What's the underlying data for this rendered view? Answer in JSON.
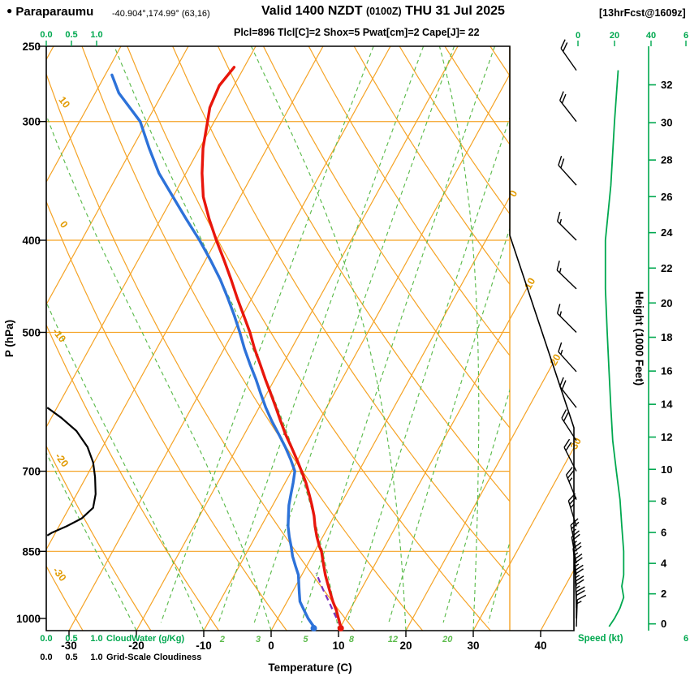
{
  "header": {
    "bullet": "●",
    "station": "Paraparaumu",
    "coords": "-40.904°,174.99° (63,16)",
    "valid_prefix": "Valid 1400 NZDT ",
    "valid_z": "(0100Z)",
    "valid_date": " THU 31 Jul 2025",
    "fcst_tag": "[13hrFcst@1609z]",
    "indices": "Plcl=896 Tlcl[C]=2 Shox=5 Pwat[cm]=2 Cape[J]= 22"
  },
  "axis_labels": {
    "pressure": "P (hPa)",
    "temperature": "Temperature (C)",
    "height": "Height (1000 Feet)",
    "speed": "Speed (kt)",
    "cloudwater": "CloudWater (g/Kg)",
    "cloudiness": "Grid-Scale Cloudiness",
    "speed_axis_cut": "6"
  },
  "ticks": {
    "pressure": [
      250,
      300,
      400,
      500,
      700,
      850,
      1000
    ],
    "temperature": [
      -30,
      -20,
      -10,
      0,
      10,
      20,
      30,
      40
    ],
    "height_kft": [
      0,
      2,
      4,
      6,
      8,
      10,
      12,
      14,
      16,
      18,
      20,
      22,
      24,
      26,
      28,
      30,
      32
    ],
    "speed_top": [
      "0",
      "20",
      "40",
      "6"
    ],
    "cloud": [
      "0.0",
      "0.5",
      "1.0"
    ]
  },
  "grid": {
    "isobars_hPa": [
      300,
      400,
      500,
      700,
      850
    ],
    "isotherms_C": [
      -80,
      -70,
      -60,
      -50,
      -40,
      -30,
      -20,
      -10,
      0,
      10,
      20,
      30,
      40
    ],
    "isotherm_edge_labels": [
      0,
      10,
      20,
      30
    ],
    "dry_adiabats_C": [
      -40,
      -30,
      -20,
      -10,
      0,
      10,
      20,
      30,
      40,
      50,
      60,
      70,
      80,
      90,
      100,
      110,
      120
    ],
    "dry_adiabat_edge_labels": [
      10,
      0,
      -10,
      -20,
      -30
    ],
    "mixing_ratio_lines_gkg": [
      1,
      2,
      3,
      5,
      8,
      12,
      20,
      30
    ],
    "mixing_ratio_labels_gkg": [
      2,
      3,
      5,
      8,
      12,
      20
    ],
    "moist_adiabats_start_C": [
      -20,
      -10,
      0,
      10,
      20,
      30
    ]
  },
  "chart_data": {
    "type": "skewt-log-p",
    "title": "Paraparaumu model sounding, valid 1400 NZDT (0100Z) THU 31 Jul 2025, 13hr forecast",
    "pressure_axis_range_hPa": [
      250,
      1030
    ],
    "temperature_axis_range_C": [
      -33,
      45
    ],
    "height_axis_range_kft": [
      0,
      32
    ],
    "speed_axis_range_kt": [
      0,
      60
    ],
    "indices": {
      "Plcl_hPa": 896,
      "Tlcl_C": 2,
      "Showalter": 5,
      "Pwat_cm": 2,
      "Cape_J": 22
    },
    "surface_dots": {
      "p_hPa": 1020,
      "temp_C": 10,
      "dewpoint_C": 6
    },
    "temperature_C": [
      [
        263,
        -51.5
      ],
      [
        275,
        -52.2
      ],
      [
        290,
        -51.8
      ],
      [
        300,
        -51
      ],
      [
        320,
        -49.5
      ],
      [
        340,
        -47.6
      ],
      [
        360,
        -45.5
      ],
      [
        380,
        -42.8
      ],
      [
        400,
        -40
      ],
      [
        420,
        -37.2
      ],
      [
        440,
        -34.6
      ],
      [
        460,
        -32.2
      ],
      [
        480,
        -29.8
      ],
      [
        500,
        -27.5
      ],
      [
        520,
        -25.5
      ],
      [
        540,
        -23.4
      ],
      [
        560,
        -21.4
      ],
      [
        580,
        -19.4
      ],
      [
        600,
        -17.5
      ],
      [
        620,
        -15.7
      ],
      [
        640,
        -13.9
      ],
      [
        660,
        -12
      ],
      [
        680,
        -10.2
      ],
      [
        700,
        -8.5
      ],
      [
        720,
        -6.9
      ],
      [
        740,
        -5.5
      ],
      [
        760,
        -4.2
      ],
      [
        780,
        -3
      ],
      [
        800,
        -2
      ],
      [
        820,
        -0.9
      ],
      [
        840,
        0.3
      ],
      [
        850,
        1
      ],
      [
        860,
        1.5
      ],
      [
        880,
        2.5
      ],
      [
        900,
        3.5
      ],
      [
        920,
        4.6
      ],
      [
        940,
        5.7
      ],
      [
        960,
        6.8
      ],
      [
        980,
        8
      ],
      [
        1000,
        9
      ],
      [
        1020,
        10
      ]
    ],
    "dewpoint_C": [
      [
        268,
        -69
      ],
      [
        280,
        -66.5
      ],
      [
        300,
        -61
      ],
      [
        320,
        -57.5
      ],
      [
        340,
        -54
      ],
      [
        360,
        -50
      ],
      [
        380,
        -46.2
      ],
      [
        400,
        -42.5
      ],
      [
        420,
        -39.2
      ],
      [
        440,
        -36.2
      ],
      [
        460,
        -33.6
      ],
      [
        480,
        -31.2
      ],
      [
        500,
        -29
      ],
      [
        520,
        -27
      ],
      [
        540,
        -24.9
      ],
      [
        560,
        -22.8
      ],
      [
        580,
        -20.9
      ],
      [
        600,
        -19
      ],
      [
        620,
        -17
      ],
      [
        640,
        -14.9
      ],
      [
        660,
        -12.9
      ],
      [
        680,
        -11.1
      ],
      [
        700,
        -9.5
      ],
      [
        720,
        -8.8
      ],
      [
        740,
        -8.2
      ],
      [
        760,
        -7.6
      ],
      [
        780,
        -6.8
      ],
      [
        800,
        -6
      ],
      [
        820,
        -5
      ],
      [
        840,
        -3.9
      ],
      [
        860,
        -2.9
      ],
      [
        880,
        -1.7
      ],
      [
        900,
        -0.5
      ],
      [
        920,
        0.3
      ],
      [
        940,
        1.1
      ],
      [
        960,
        1.9
      ],
      [
        980,
        3.2
      ],
      [
        1000,
        4.5
      ],
      [
        1020,
        6
      ]
    ],
    "parcel_path_C": [
      [
        1020,
        10
      ],
      [
        990,
        8.1
      ],
      [
        960,
        6.2
      ],
      [
        930,
        4.2
      ],
      [
        896,
        2
      ]
    ],
    "cloud_fraction": [
      [
        600,
        0.02
      ],
      [
        615,
        0.3
      ],
      [
        635,
        0.6
      ],
      [
        660,
        0.82
      ],
      [
        685,
        0.93
      ],
      [
        710,
        0.97
      ],
      [
        740,
        0.98
      ],
      [
        765,
        0.93
      ],
      [
        785,
        0.7
      ],
      [
        800,
        0.4
      ],
      [
        812,
        0.12
      ],
      [
        818,
        0.02
      ]
    ],
    "wind_kt": [
      [
        265,
        325,
        22
      ],
      [
        300,
        322,
        20
      ],
      [
        350,
        318,
        18
      ],
      [
        400,
        315,
        15
      ],
      [
        450,
        314,
        15
      ],
      [
        500,
        315,
        16
      ],
      [
        550,
        318,
        17
      ],
      [
        600,
        322,
        18
      ],
      [
        650,
        327,
        19
      ],
      [
        700,
        333,
        21
      ],
      [
        750,
        338,
        23
      ],
      [
        800,
        343,
        24
      ],
      [
        850,
        348,
        25
      ],
      [
        875,
        350,
        25
      ],
      [
        900,
        353,
        25
      ],
      [
        925,
        355,
        24
      ],
      [
        950,
        357,
        25
      ],
      [
        975,
        358,
        23
      ],
      [
        1000,
        360,
        20
      ],
      [
        1020,
        2,
        17
      ]
    ]
  },
  "colors": {
    "grid_orange": "#F5A325",
    "label_orange": "#E19A00",
    "grid_green": "#5CBB4C",
    "axis_green": "#00A84F",
    "temp_red": "#E8160C",
    "dew_blue": "#2D72D9",
    "parcel_purple": "#7B2FBE",
    "magenta": "#C7007D",
    "black": "#000000"
  }
}
